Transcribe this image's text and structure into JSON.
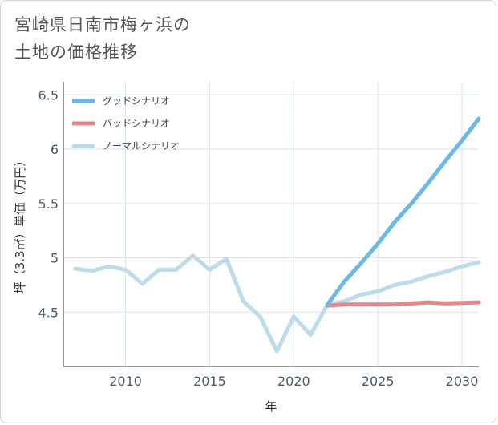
{
  "title_lines": [
    "宮崎県日南市梅ヶ浜の",
    "土地の価格推移"
  ],
  "chart_data": {
    "type": "line",
    "title": "宮崎県日南市梅ヶ浜の土地の価格推移",
    "xlabel": "年",
    "ylabel": "坪（3.3㎡）単価（万円）",
    "xlim": [
      2006.3,
      2031
    ],
    "ylim": [
      4.0,
      6.62
    ],
    "x_ticks": [
      2010,
      2015,
      2020,
      2025,
      2030
    ],
    "y_ticks": [
      4.5,
      5,
      5.5,
      6,
      6.5
    ],
    "x_tick_labels": [
      "2010",
      "2015",
      "2020",
      "2025",
      "2030"
    ],
    "y_tick_labels": [
      "4.5",
      "5",
      "5.5",
      "6",
      "6.5"
    ],
    "grid": true,
    "legend_position": "top-left",
    "series": [
      {
        "name": "グッドシナリオ",
        "color": "#6cb8ea",
        "x": [
          2022,
          2023,
          2024,
          2025,
          2026,
          2027,
          2028,
          2029,
          2030,
          2031
        ],
        "y": [
          4.57,
          4.78,
          4.95,
          5.13,
          5.33,
          5.5,
          5.69,
          5.89,
          6.08,
          6.28
        ]
      },
      {
        "name": "バッドシナリオ",
        "color": "#de8a8d",
        "x": [
          2022,
          2023,
          2024,
          2025,
          2026,
          2027,
          2028,
          2029,
          2030,
          2031
        ],
        "y": [
          4.56,
          4.57,
          4.57,
          4.57,
          4.57,
          4.58,
          4.59,
          4.58,
          4.585,
          4.59
        ]
      },
      {
        "name": "ノーマルシナリオ",
        "color": "#bcdcec",
        "x": [
          2007,
          2008,
          2009,
          2010,
          2011,
          2012,
          2013,
          2014,
          2015,
          2016,
          2017,
          2018,
          2019,
          2020,
          2021,
          2022,
          2023,
          2024,
          2025,
          2026,
          2027,
          2028,
          2029,
          2030,
          2031
        ],
        "y": [
          4.9,
          4.88,
          4.92,
          4.89,
          4.76,
          4.89,
          4.89,
          5.02,
          4.89,
          4.99,
          4.6,
          4.46,
          4.14,
          4.46,
          4.29,
          4.57,
          4.6,
          4.66,
          4.69,
          4.75,
          4.78,
          4.83,
          4.87,
          4.92,
          4.96
        ]
      }
    ]
  }
}
